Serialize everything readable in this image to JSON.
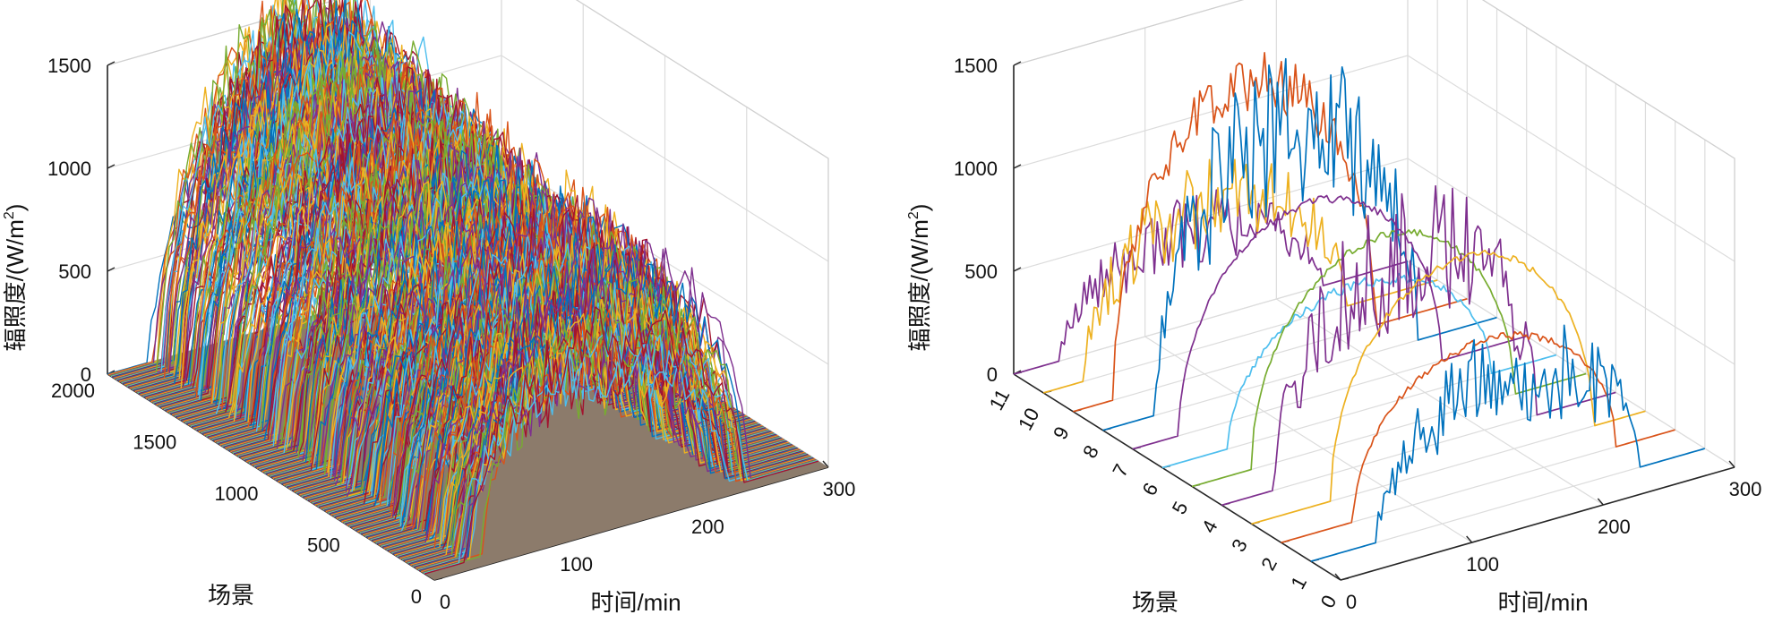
{
  "chart_data": [
    {
      "type": "line",
      "subtype": "3d-waterfall",
      "title": "",
      "xlabel": "时间/min",
      "ylabel": "场景",
      "zlabel_main": "辐照度/(W/m",
      "zlabel_sup": "2",
      "zlabel_tail": ")",
      "xlim": [
        0,
        300
      ],
      "ylim": [
        0,
        2000
      ],
      "zlim": [
        0,
        1500
      ],
      "x_ticks": [
        "0",
        "100",
        "200",
        "300"
      ],
      "y_ticks": [
        "0",
        "500",
        "1000",
        "1500",
        "2000"
      ],
      "z_ticks": [
        "0",
        "500",
        "1000",
        "1500"
      ],
      "floor_color": "#8c7b6b",
      "series_colors": [
        "#0072bd",
        "#d95319",
        "#edb120",
        "#7e2f8e",
        "#77ac30",
        "#4dbeee",
        "#a2142f"
      ],
      "scenario_count_drawn": 2000,
      "description_series": "Dense set of ~2000 irradiance scenarios, each a noisy bell shaped day curve from ~50 to ~250 min, peaks 600-1650 W/m2"
    },
    {
      "type": "line",
      "subtype": "3d-waterfall",
      "title": "",
      "xlabel": "时间/min",
      "ylabel": "场景",
      "zlabel_main": "辐照度/(W/m",
      "zlabel_sup": "2",
      "zlabel_tail": ")",
      "xlim": [
        0,
        300
      ],
      "ylim": [
        0,
        11
      ],
      "zlim": [
        0,
        1500
      ],
      "x_ticks": [
        "0",
        "100",
        "200",
        "300"
      ],
      "y_ticks": [
        "0",
        "1",
        "2",
        "3",
        "4",
        "5",
        "6",
        "7",
        "8",
        "9",
        "10",
        "11"
      ],
      "z_ticks": [
        "0",
        "500",
        "1000",
        "1500"
      ],
      "series": [
        {
          "name": "1",
          "color": "#0072bd",
          "peak": 620,
          "center": 150,
          "noise": 260
        },
        {
          "name": "2",
          "color": "#d95319",
          "peak": 700,
          "center": 155,
          "noise": 20
        },
        {
          "name": "3",
          "color": "#edb120",
          "peak": 1000,
          "center": 160,
          "noise": 20
        },
        {
          "name": "4",
          "color": "#7e2f8e",
          "peak": 950,
          "center": 140,
          "noise": 360
        },
        {
          "name": "5",
          "color": "#77ac30",
          "peak": 950,
          "center": 145,
          "noise": 20
        },
        {
          "name": "6",
          "color": "#4dbeee",
          "peak": 620,
          "center": 150,
          "noise": 30
        },
        {
          "name": "7",
          "color": "#7e2f8e",
          "peak": 950,
          "center": 135,
          "noise": 20
        },
        {
          "name": "8",
          "color": "#0072bd",
          "peak": 1200,
          "center": 140,
          "noise": 420
        },
        {
          "name": "9",
          "color": "#d95319",
          "peak": 1350,
          "center": 130,
          "noise": 150
        },
        {
          "name": "10",
          "color": "#edb120",
          "peak": 700,
          "center": 130,
          "noise": 220
        },
        {
          "name": "11",
          "color": "#7e2f8e",
          "peak": 450,
          "center": 135,
          "noise": 180
        }
      ]
    }
  ]
}
